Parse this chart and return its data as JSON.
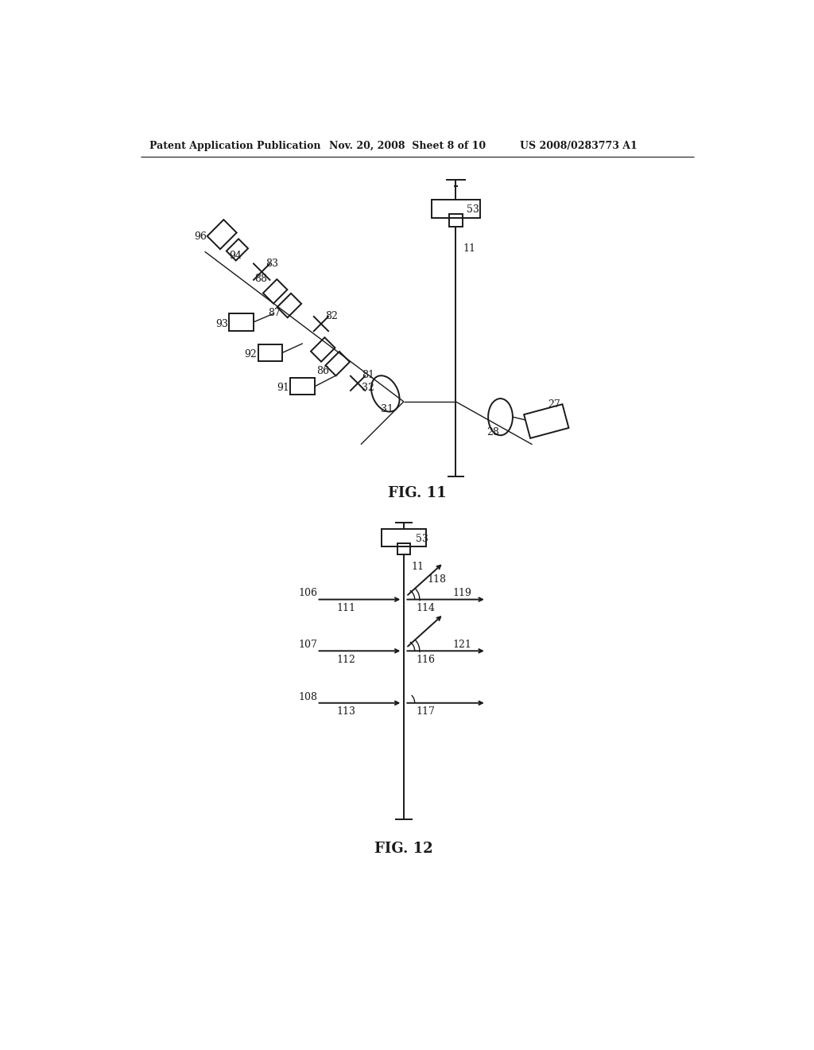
{
  "bg_color": "#ffffff",
  "header_left": "Patent Application Publication",
  "header_mid": "Nov. 20, 2008  Sheet 8 of 10",
  "header_right": "US 2008/0283773 A1",
  "fig11_label": "FIG. 11",
  "fig12_label": "FIG. 12",
  "line_color": "#1a1a1a",
  "lw": 1.4,
  "lw_thin": 1.0
}
